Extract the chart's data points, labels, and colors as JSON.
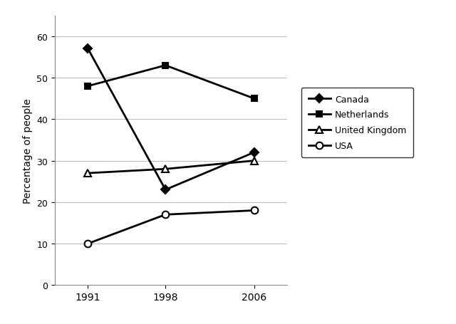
{
  "years": [
    1991,
    1998,
    2006
  ],
  "series": [
    {
      "label": "Canada",
      "values": [
        57,
        23,
        32
      ],
      "marker": "D",
      "color": "#000000",
      "markersize": 6,
      "markerfacecolor": "#000000"
    },
    {
      "label": "Netherlands",
      "values": [
        48,
        53,
        45
      ],
      "marker": "s",
      "color": "#000000",
      "markersize": 6,
      "markerfacecolor": "#000000"
    },
    {
      "label": "United Kingdom",
      "values": [
        27,
        28,
        30
      ],
      "marker": "^",
      "color": "#000000",
      "markersize": 7,
      "markerfacecolor": "#ffffff"
    },
    {
      "label": "USA",
      "values": [
        10,
        17,
        18
      ],
      "marker": "o",
      "color": "#000000",
      "markersize": 7,
      "markerfacecolor": "#ffffff"
    }
  ],
  "ylabel": "Percentage of people",
  "ylim": [
    0,
    65
  ],
  "yticks": [
    0,
    10,
    20,
    30,
    40,
    50,
    60
  ],
  "xticks": [
    1991,
    1998,
    2006
  ],
  "background_color": "#ffffff",
  "linewidth": 2.0,
  "grid_color": "#bbbbbb"
}
